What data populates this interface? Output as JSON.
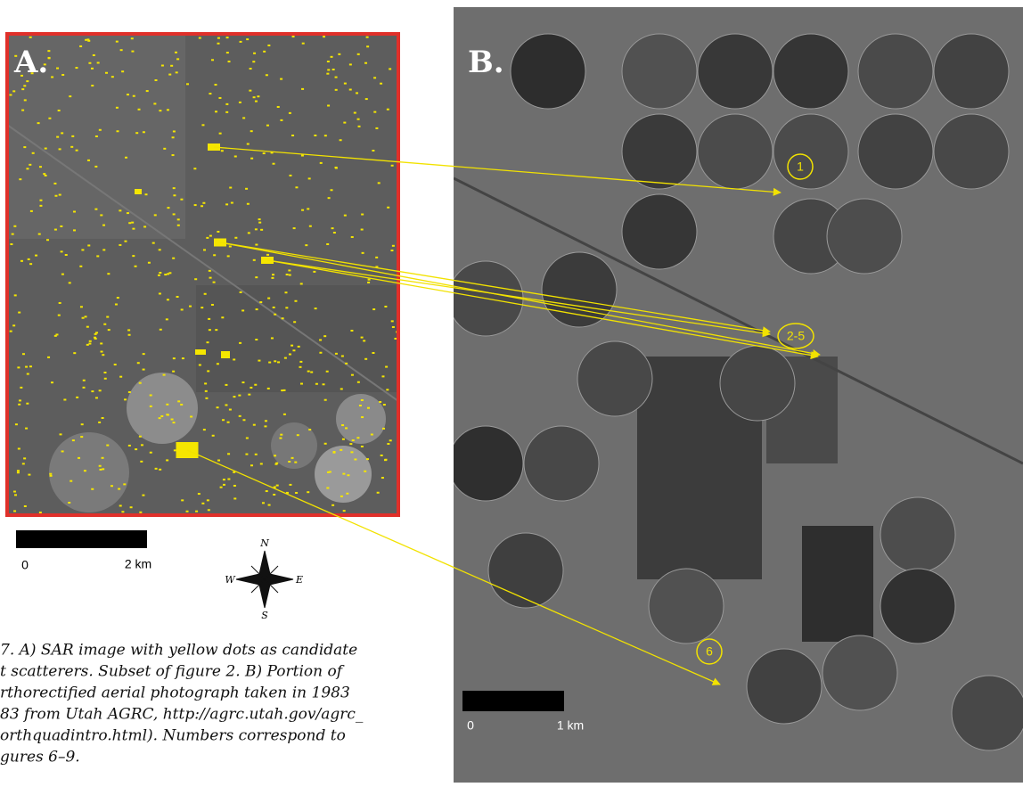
{
  "panel_a": {
    "label": "A.",
    "scale_bar": {
      "start": "0",
      "end": "2 km"
    },
    "compass": {
      "n": "N",
      "s": "S",
      "e": "E",
      "w": "W"
    }
  },
  "panel_b": {
    "label": "B.",
    "markers": [
      "1",
      "2-5",
      "6"
    ],
    "scale_bar": {
      "start": "0",
      "end": "1 km"
    }
  },
  "caption": {
    "lines": [
      "7. A) SAR image with yellow dots as candidate",
      "t scatterers. Subset of figure 2.  B) Portion of",
      "rthorectified aerial photograph taken in 1983",
      "83 from Utah AGRC, http://agrc.utah.gov/agrc_",
      "orthquadintro.html). Numbers correspond to",
      "gures 6–9."
    ]
  }
}
